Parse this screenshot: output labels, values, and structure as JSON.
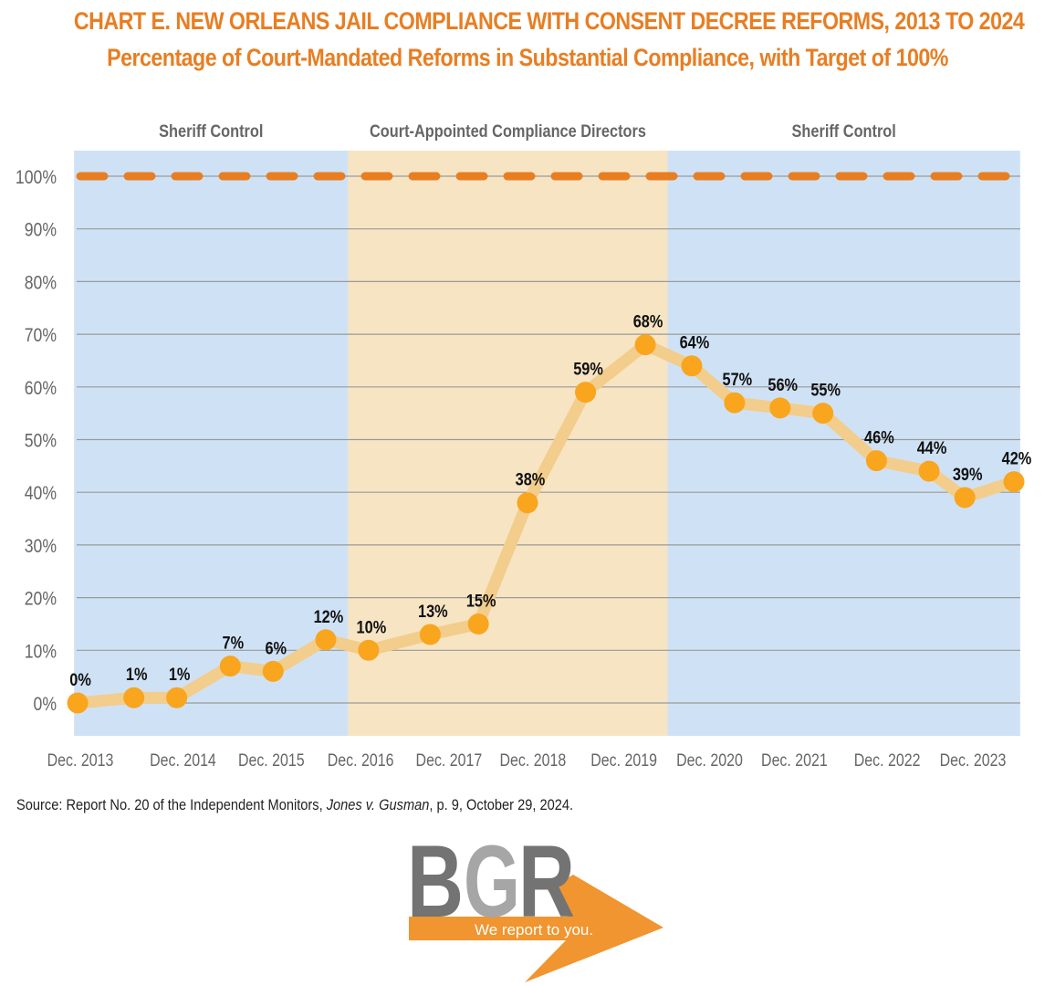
{
  "header": {
    "title": "CHART E. NEW ORLEANS JAIL COMPLIANCE WITH CONSENT DECREE REFORMS, 2013 TO 2024",
    "subtitle": "Percentage of Court-Mandated Reforms in Substantial Compliance, with Target of 100%"
  },
  "colors": {
    "title": "#E87E22",
    "sheriff_band": "#CFE2F5",
    "director_band": "#F7E4C3",
    "target_line": "#E87E22",
    "series_line": "#F2CD8C",
    "point": "#F9A51E",
    "grid": "#9A9A9A",
    "axis_text": "#666666",
    "period_text": "#666666",
    "logo_dark": "#737373",
    "logo_light": "#A6A6A6",
    "logo_orange": "#F0952F"
  },
  "chart_data": {
    "type": "line",
    "title": "CHART E. NEW ORLEANS JAIL COMPLIANCE WITH CONSENT DECREE REFORMS, 2013 TO 2024",
    "subtitle": "Percentage of Court-Mandated Reforms in Substantial Compliance, with Target of 100%",
    "xlabel": "",
    "ylabel": "",
    "xlim": [
      2013.85,
      2024.45
    ],
    "ylim": [
      0,
      100
    ],
    "grid": true,
    "yticks": [
      {
        "value": 0,
        "label": "0%"
      },
      {
        "value": 10,
        "label": "10%"
      },
      {
        "value": 20,
        "label": "20%"
      },
      {
        "value": 30,
        "label": "30%"
      },
      {
        "value": 40,
        "label": "40%"
      },
      {
        "value": 50,
        "label": "50%"
      },
      {
        "value": 60,
        "label": "60%"
      },
      {
        "value": 70,
        "label": "70%"
      },
      {
        "value": 80,
        "label": "80%"
      },
      {
        "value": 90,
        "label": "90%"
      },
      {
        "value": 100,
        "label": "100%"
      }
    ],
    "xticks": [
      {
        "value": 2013.92,
        "label": "Dec. 2013"
      },
      {
        "value": 2015.07,
        "label": "Dec. 2014"
      },
      {
        "value": 2016.06,
        "label": "Dec. 2015"
      },
      {
        "value": 2017.06,
        "label": "Dec. 2016"
      },
      {
        "value": 2018.05,
        "label": "Dec. 2017"
      },
      {
        "value": 2018.99,
        "label": "Dec. 2018"
      },
      {
        "value": 2020.01,
        "label": "Dec. 2019"
      },
      {
        "value": 2020.97,
        "label": "Dec. 2020"
      },
      {
        "value": 2021.92,
        "label": "Dec. 2021"
      },
      {
        "value": 2022.96,
        "label": "Dec. 2022"
      },
      {
        "value": 2023.92,
        "label": "Dec. 2023"
      }
    ],
    "periods": [
      {
        "label": "Sheriff Control",
        "start": 2013.85,
        "end": 2016.92,
        "type": "sheriff"
      },
      {
        "label": "Court-Appointed Compliance Directors",
        "start": 2016.92,
        "end": 2020.5,
        "type": "director"
      },
      {
        "label": "Sheriff Control",
        "start": 2020.5,
        "end": 2024.45,
        "type": "sheriff"
      }
    ],
    "target": {
      "value": 100,
      "label": "Target of 100%"
    },
    "series": [
      {
        "name": "Substantial Compliance",
        "x": [
          2013.89,
          2014.52,
          2015.0,
          2015.6,
          2016.08,
          2016.67,
          2017.15,
          2017.84,
          2018.38,
          2018.93,
          2019.58,
          2020.25,
          2020.77,
          2021.25,
          2021.76,
          2022.24,
          2022.84,
          2023.43,
          2023.83,
          2024.38
        ],
        "values": [
          0,
          1,
          1,
          7,
          6,
          12,
          10,
          13,
          15,
          38,
          59,
          68,
          64,
          57,
          56,
          55,
          46,
          44,
          39,
          42
        ],
        "labels": [
          "0%",
          "1%",
          "1%",
          "7%",
          "6%",
          "12%",
          "10%",
          "13%",
          "15%",
          "38%",
          "59%",
          "68%",
          "64%",
          "57%",
          "56%",
          "55%",
          "46%",
          "44%",
          "39%",
          "42%"
        ]
      }
    ]
  },
  "source": {
    "prefix": "Source: Report No. 20 of the Independent Monitors, ",
    "case": "Jones v. Gusman",
    "suffix": ", p. 9, October 29, 2024."
  },
  "logo": {
    "letters": "BGR",
    "tagline": "We report to you."
  }
}
